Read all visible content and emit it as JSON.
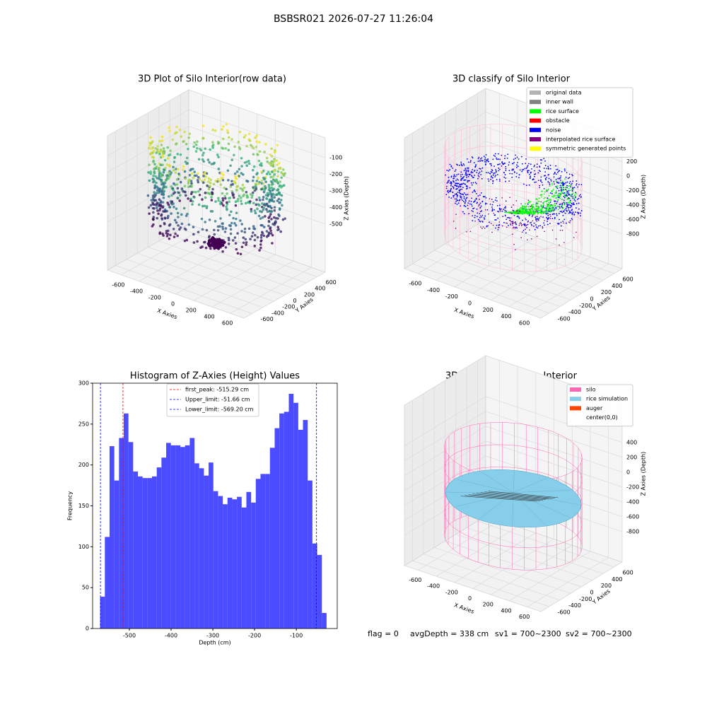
{
  "title": "BSBSR021 2026-07-27 11:26:04",
  "chart_data": [
    {
      "type": "scatter3d",
      "title": "3D Plot of Silo Interior(row data)",
      "xlabel": "X Axies",
      "ylabel": "Y Axies",
      "zlabel": "Z Axies (Depth)",
      "xlim": [
        -750,
        750
      ],
      "ylim": [
        -750,
        750
      ],
      "zlim": [
        -790,
        20
      ],
      "xticks": [
        -600,
        -400,
        -200,
        0,
        200,
        400,
        600
      ],
      "yticks": [
        -600,
        -400,
        -200,
        0,
        200,
        400,
        600
      ],
      "zticks": [
        -100,
        -200,
        -300,
        -400,
        -500
      ]
    },
    {
      "type": "scatter3d",
      "title": "3D classify of Silo Interior",
      "xlabel": "X Axies",
      "ylabel": "Y Axies",
      "zlabel": "Z Axies (Depth)",
      "xlim": [
        -750,
        750
      ],
      "ylim": [
        -750,
        750
      ],
      "zlim": [
        -1280,
        530
      ],
      "xticks": [
        -600,
        -400,
        -200,
        0,
        200,
        400,
        600
      ],
      "yticks": [
        -600,
        -400,
        -200,
        0,
        200,
        400,
        600
      ],
      "zticks": [
        200,
        0,
        -200,
        -400,
        -600,
        -800
      ],
      "legend": [
        {
          "name": "original data",
          "color": "#b3b3b3"
        },
        {
          "name": "inner wall",
          "color": "#808080"
        },
        {
          "name": "rice surface",
          "color": "#00ff00"
        },
        {
          "name": "obstacle",
          "color": "#ff0000"
        },
        {
          "name": "noise",
          "color": "#0000ff"
        },
        {
          "name": "interpolated rice surface",
          "color": "#800080"
        },
        {
          "name": "symmetric generated points",
          "color": "#ffff00"
        }
      ]
    },
    {
      "type": "histogram",
      "title": "Histogram of Z-Axies (Height) Values",
      "xlabel": "Depth (cm)",
      "ylabel": "Frequency",
      "color": "#4b4bff",
      "xlim": [
        -588,
        -2
      ],
      "ylim": [
        0,
        300
      ],
      "xticks": [
        -500,
        -400,
        -300,
        -200,
        -100
      ],
      "yticks": [
        0,
        50,
        100,
        150,
        200,
        250,
        300
      ],
      "bins": [
        -570,
        -558.7,
        -547.4,
        -536.1,
        -524.8,
        -513.5,
        -502.2,
        -490.9,
        -479.6,
        -468.3,
        -457,
        -445.7,
        -434.4,
        -423.1,
        -411.8,
        -400.5,
        -389.2,
        -377.9,
        -366.6,
        -355.3,
        -344,
        -332.7,
        -321.4,
        -310.1,
        -298.8,
        -287.5,
        -276.2,
        -264.9,
        -253.6,
        -242.3,
        -231,
        -219.7,
        -208.4,
        -197.1,
        -185.8,
        -174.5,
        -163.2,
        -151.9,
        -140.6,
        -129.3,
        -118,
        -106.7,
        -95.4,
        -84.1,
        -72.8,
        -61.5,
        -50.2,
        -38.9,
        -27.6
      ],
      "values": [
        39,
        112,
        223,
        181,
        233,
        263,
        228,
        192,
        186,
        184,
        184,
        186,
        197,
        209,
        227,
        224,
        224,
        222,
        224,
        233,
        202,
        196,
        187,
        203,
        168,
        162,
        152,
        160,
        158,
        161,
        148,
        167,
        154,
        183,
        189,
        189,
        221,
        245,
        263,
        265,
        287,
        276,
        243,
        255,
        181,
        104,
        90,
        19
      ],
      "lines": [
        {
          "label": "first_peak: -515.29 cm",
          "value": -515.29,
          "color": "#ff0000"
        },
        {
          "label": "Upper_limit: -51.66 cm",
          "value": -51.66,
          "color": "#0000ff"
        },
        {
          "label": "Lower_limit: -569.20 cm",
          "value": -569.2,
          "color": "#0000ff"
        }
      ]
    },
    {
      "type": "surface3d",
      "title": "3D simulation of Silo Interior",
      "xlabel": "X Axies",
      "ylabel": "Y Axies",
      "zlabel": "Z Axies (Depth)",
      "xlim": [
        -750,
        750
      ],
      "ylim": [
        -750,
        750
      ],
      "zlim": [
        -1210,
        950
      ],
      "xticks": [
        -600,
        -400,
        -200,
        0,
        200,
        400,
        600
      ],
      "yticks": [
        -600,
        -400,
        -200,
        0,
        200,
        400,
        600
      ],
      "zticks": [
        400,
        200,
        0,
        -200,
        -400,
        -600,
        -800
      ],
      "legend": [
        {
          "name": "silo",
          "color": "#ff69b4"
        },
        {
          "name": "rice simulation",
          "color": "#87ceeb"
        },
        {
          "name": "auger",
          "color": "#ff4500"
        },
        {
          "name": "center(0,0)",
          "color": "#ffffff"
        }
      ],
      "annotations": [
        "flag = 0",
        "avgDepth = 338 cm",
        "sv1 = 700~2300",
        "sv2 = 700~2300"
      ]
    }
  ]
}
